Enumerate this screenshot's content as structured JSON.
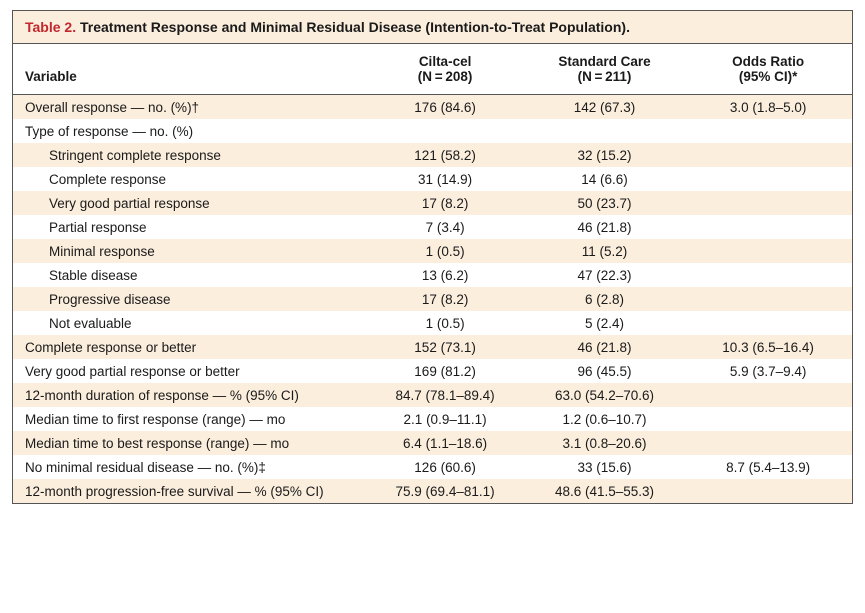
{
  "table": {
    "number_label": "Table 2.",
    "title": "Treatment Response and Minimal Residual Disease (Intention-to-Treat Population).",
    "type": "table",
    "background_color": "#ffffff",
    "stripe_color": "#fbeedd",
    "border_color": "#555555",
    "font_family": "Verdana",
    "header_fontsize": 13.5,
    "cell_fontsize": 13.5,
    "title_fontsize": 14,
    "title_number_color": "#c1272d",
    "columns": {
      "variable": "Variable",
      "arm_a": "Cilta-cel\n(N = 208)",
      "arm_b": "Standard Care\n(N = 211)",
      "odds": "Odds Ratio\n(95% CI)*"
    },
    "column_widths_pct": [
      42,
      19,
      19,
      20
    ],
    "rows": [
      {
        "variable": "Overall response — no. (%)†",
        "a": "176 (84.6)",
        "b": "142 (67.3)",
        "or": "3.0 (1.8–5.0)",
        "indent": 0,
        "stripe": true
      },
      {
        "variable": "Type of response — no. (%)",
        "a": "",
        "b": "",
        "or": "",
        "indent": 0,
        "stripe": false
      },
      {
        "variable": "Stringent complete response",
        "a": "121 (58.2)",
        "b": "32 (15.2)",
        "or": "",
        "indent": 1,
        "stripe": true
      },
      {
        "variable": "Complete response",
        "a": "31 (14.9)",
        "b": "14 (6.6)",
        "or": "",
        "indent": 1,
        "stripe": false
      },
      {
        "variable": "Very good partial response",
        "a": "17 (8.2)",
        "b": "50 (23.7)",
        "or": "",
        "indent": 1,
        "stripe": true
      },
      {
        "variable": "Partial response",
        "a": "7 (3.4)",
        "b": "46 (21.8)",
        "or": "",
        "indent": 1,
        "stripe": false
      },
      {
        "variable": "Minimal response",
        "a": "1 (0.5)",
        "b": "11 (5.2)",
        "or": "",
        "indent": 1,
        "stripe": true
      },
      {
        "variable": "Stable disease",
        "a": "13 (6.2)",
        "b": "47 (22.3)",
        "or": "",
        "indent": 1,
        "stripe": false
      },
      {
        "variable": "Progressive disease",
        "a": "17 (8.2)",
        "b": "6 (2.8)",
        "or": "",
        "indent": 1,
        "stripe": true
      },
      {
        "variable": "Not evaluable",
        "a": "1 (0.5)",
        "b": "5 (2.4)",
        "or": "",
        "indent": 1,
        "stripe": false
      },
      {
        "variable": "Complete response or better",
        "a": "152 (73.1)",
        "b": "46 (21.8)",
        "or": "10.3 (6.5–16.4)",
        "indent": 0,
        "stripe": true
      },
      {
        "variable": "Very good partial response or better",
        "a": "169 (81.2)",
        "b": "96 (45.5)",
        "or": "5.9 (3.7–9.4)",
        "indent": 0,
        "stripe": false
      },
      {
        "variable": "12-month duration of response — % (95% CI)",
        "a": "84.7 (78.1–89.4)",
        "b": "63.0 (54.2–70.6)",
        "or": "",
        "indent": 0,
        "stripe": true
      },
      {
        "variable": "Median time to first response (range) — mo",
        "a": "2.1 (0.9–11.1)",
        "b": "1.2 (0.6–10.7)",
        "or": "",
        "indent": 0,
        "stripe": false
      },
      {
        "variable": "Median time to best response (range) — mo",
        "a": "6.4 (1.1–18.6)",
        "b": "3.1 (0.8–20.6)",
        "or": "",
        "indent": 0,
        "stripe": true
      },
      {
        "variable": "No minimal residual disease — no. (%)‡",
        "a": "126 (60.6)",
        "b": "33 (15.6)",
        "or": "8.7 (5.4–13.9)",
        "indent": 0,
        "stripe": false
      },
      {
        "variable": "12-month progression-free survival — % (95% CI)",
        "a": "75.9 (69.4–81.1)",
        "b": "48.6 (41.5–55.3)",
        "or": "",
        "indent": 0,
        "stripe": true
      }
    ]
  }
}
